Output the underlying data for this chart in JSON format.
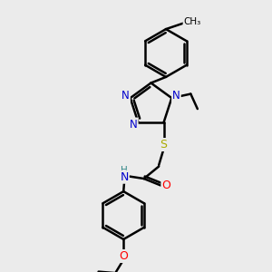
{
  "background_color": "#ebebeb",
  "atom_colors": {
    "C": "#000000",
    "N": "#0000cc",
    "O": "#ff0000",
    "S": "#aaaa00",
    "H": "#338888"
  },
  "bond_color": "#000000",
  "bond_lw": 1.8,
  "font_size_atom": 8.5,
  "font_size_small": 7.5
}
